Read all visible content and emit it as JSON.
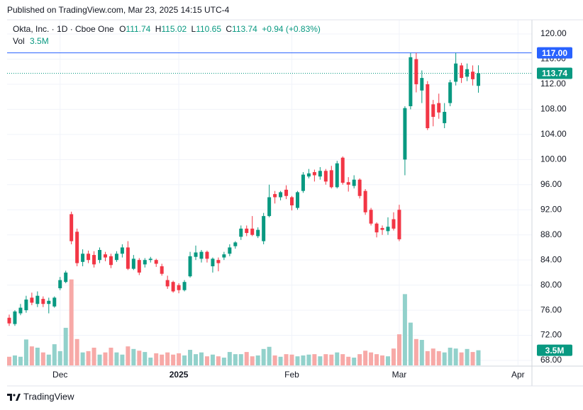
{
  "published": "Published on TradingView.com, Mar 23, 2025 14:15 UTC-4",
  "footer": "TradingView",
  "chart_data": {
    "type": "candlestick",
    "symbol": "Okta, Inc. · 1D · Cboe One",
    "ohlc_letters": [
      "O",
      "H",
      "L",
      "C"
    ],
    "change_label": "+0.94 (+0.83%)",
    "up_color": "#089981",
    "down_color": "#f23645",
    "volume_up_color": "#92d1cb",
    "volume_down_color": "#f7a9a7",
    "open": [
      74.8,
      73.8,
      75.5,
      76.0,
      78.0,
      77.0,
      77.8,
      77.0,
      76.6,
      79.5,
      80.5,
      91.3,
      88.5,
      83.7,
      85.0,
      84.8,
      84.0,
      84.9,
      84.6,
      84.0,
      85.0,
      86.0,
      82.6,
      84.0,
      83.3,
      84.0,
      84.0,
      83.0,
      80.8,
      80.5,
      80.0,
      79.2,
      81.4,
      84.5,
      84.2,
      85.3,
      83.0,
      84.0,
      84.4,
      85.0,
      86.2,
      87.7,
      89.0,
      89.0,
      87.8,
      87.0,
      91.0,
      94.5,
      94.0,
      95.2,
      94.0,
      92.3,
      95.0,
      97.3,
      98.0,
      97.3,
      98.2,
      98.3,
      95.6,
      100.3,
      96.4,
      95.8,
      96.8,
      95.0,
      92.0,
      89.8,
      89.1,
      88.6,
      90.5,
      92.0,
      100.0,
      108.5,
      116.0,
      111.0,
      112.0,
      108.8,
      109.0,
      105.8,
      109.0,
      112.4,
      115.0,
      113.2,
      114.0,
      111.74
    ],
    "high": [
      75.3,
      76.0,
      77.0,
      78.3,
      78.8,
      79.0,
      78.2,
      78.0,
      78.2,
      81.3,
      82.3,
      91.7,
      89.0,
      85.7,
      85.5,
      85.4,
      86.0,
      85.3,
      85.0,
      85.4,
      86.5,
      87.0,
      84.8,
      84.3,
      84.3,
      84.5,
      84.2,
      83.4,
      81.5,
      80.7,
      80.3,
      80.8,
      85.3,
      86.3,
      85.6,
      85.5,
      84.4,
      84.4,
      85.3,
      86.5,
      87.0,
      89.5,
      89.5,
      91.0,
      89.2,
      91.5,
      96.0,
      95.0,
      95.0,
      95.9,
      94.2,
      95.0,
      98.0,
      98.5,
      98.4,
      98.8,
      98.5,
      99.0,
      99.8,
      100.5,
      97.2,
      97.5,
      97.0,
      95.3,
      92.3,
      90.0,
      89.5,
      90.8,
      91.6,
      92.8,
      108.5,
      117.0,
      117.0,
      114.2,
      112.5,
      109.5,
      110.5,
      109.0,
      112.7,
      117.0,
      115.4,
      115.3,
      115.0,
      115.02
    ],
    "low": [
      73.5,
      73.5,
      75.2,
      75.6,
      76.8,
      76.5,
      76.5,
      75.5,
      76.4,
      79.2,
      80.3,
      86.5,
      83.0,
      83.0,
      83.5,
      82.8,
      83.5,
      83.8,
      82.7,
      83.7,
      84.4,
      82.4,
      82.4,
      81.6,
      82.8,
      83.6,
      82.9,
      81.5,
      79.4,
      78.8,
      78.7,
      79.0,
      81.2,
      84.0,
      83.6,
      83.6,
      82.0,
      82.2,
      84.0,
      84.6,
      85.8,
      87.2,
      87.8,
      87.8,
      87.5,
      86.5,
      90.8,
      93.0,
      93.5,
      93.7,
      91.9,
      92.0,
      94.7,
      97.0,
      96.5,
      96.8,
      96.0,
      95.4,
      95.4,
      96.0,
      94.9,
      95.4,
      93.8,
      91.2,
      89.5,
      87.6,
      88.0,
      88.0,
      88.7,
      87.0,
      97.5,
      108.0,
      110.7,
      109.0,
      104.7,
      105.3,
      106.5,
      105.0,
      108.5,
      111.8,
      112.2,
      112.5,
      111.8,
      110.65
    ],
    "close": [
      73.9,
      75.8,
      76.4,
      77.7,
      77.2,
      78.3,
      77.0,
      77.5,
      78.0,
      80.8,
      82.0,
      87.0,
      83.5,
      85.0,
      84.0,
      83.3,
      85.6,
      84.4,
      83.2,
      85.0,
      86.0,
      82.6,
      84.2,
      82.0,
      84.0,
      84.2,
      83.4,
      81.8,
      79.8,
      79.0,
      79.2,
      80.5,
      84.6,
      85.2,
      85.3,
      84.2,
      84.2,
      83.5,
      84.9,
      86.0,
      86.8,
      89.0,
      88.3,
      88.0,
      88.8,
      91.0,
      94.0,
      94.0,
      94.8,
      94.2,
      92.7,
      94.8,
      97.6,
      97.8,
      97.5,
      98.2,
      96.5,
      95.6,
      99.4,
      96.3,
      96.0,
      96.8,
      94.2,
      91.6,
      89.8,
      88.4,
      88.8,
      89.3,
      89.0,
      87.3,
      108.2,
      116.3,
      112.0,
      113.0,
      105.0,
      106.8,
      107.5,
      107.6,
      112.3,
      115.3,
      113.0,
      114.4,
      112.8,
      113.74
    ],
    "volume": {
      "name": "Vol",
      "values": [
        2.0,
        2.3,
        2.0,
        6.0,
        4.4,
        4.1,
        3.0,
        2.5,
        4.9,
        3.3,
        8.7,
        19.9,
        6.1,
        3.0,
        3.3,
        4.1,
        2.5,
        3.0,
        4.1,
        3.0,
        2.5,
        4.4,
        3.8,
        3.4,
        3.1,
        1.8,
        2.8,
        2.5,
        3.0,
        2.5,
        2.8,
        2.3,
        3.6,
        2.6,
        3.0,
        2.1,
        2.5,
        2.1,
        1.8,
        3.1,
        2.6,
        2.6,
        3.1,
        2.1,
        2.3,
        3.8,
        4.3,
        2.3,
        2.0,
        2.6,
        2.5,
        2.1,
        2.3,
        2.5,
        2.6,
        2.1,
        2.6,
        2.5,
        3.0,
        2.6,
        2.0,
        1.8,
        2.6,
        3.4,
        3.0,
        2.6,
        2.3,
        2.1,
        3.9,
        7.2,
        16.5,
        9.9,
        6.1,
        5.9,
        3.3,
        3.9,
        3.3,
        3.0,
        4.1,
        3.9,
        3.0,
        3.8,
        3.1,
        3.5
      ],
      "value_labels": [
        null,
        null,
        null,
        null,
        null,
        null,
        null,
        null,
        null,
        null,
        null,
        null,
        null,
        null,
        null,
        null,
        null,
        null,
        null,
        null,
        null,
        null,
        null,
        null,
        null,
        null,
        null,
        null,
        null,
        null,
        null,
        null,
        null,
        null,
        null,
        null,
        null,
        null,
        null,
        null,
        null,
        null,
        null,
        null,
        null,
        null,
        null,
        null,
        null,
        null,
        null,
        null,
        null,
        null,
        null,
        null,
        null,
        null,
        null,
        null,
        null,
        null,
        null,
        null,
        null,
        null,
        null,
        null,
        null,
        null,
        null,
        null,
        null,
        null,
        null,
        null,
        null,
        null,
        null,
        null,
        null,
        null,
        null,
        "3.5M"
      ],
      "ylim": [
        0,
        80
      ]
    },
    "hline": {
      "value": 117,
      "label": "117.00",
      "color": "#2962ff"
    },
    "xlim": [
      -0.376,
      92.47
    ],
    "xticks": [
      {
        "value": 9,
        "label": "Dec"
      },
      {
        "value": 30,
        "label": "2025"
      },
      {
        "value": 50,
        "label": "Feb"
      },
      {
        "value": 69,
        "label": "Mar"
      },
      {
        "value": 90,
        "label": "Apr"
      }
    ],
    "ylim": [
      66.76,
      122.26
    ],
    "yticks": [
      {
        "value": 68,
        "label": "68.00"
      },
      {
        "value": 72,
        "label": "72.00"
      },
      {
        "value": 76,
        "label": "76.00"
      },
      {
        "value": 80,
        "label": "80.00"
      },
      {
        "value": 84,
        "label": "84.00"
      },
      {
        "value": 88,
        "label": "88.00"
      },
      {
        "value": 92,
        "label": "92.00"
      },
      {
        "value": 96,
        "label": "96.00"
      },
      {
        "value": 100,
        "label": "100.00"
      },
      {
        "value": 104,
        "label": "104.00"
      },
      {
        "value": 108,
        "label": "108.00"
      },
      {
        "value": 112,
        "label": "112.00"
      },
      {
        "value": 116,
        "label": "116.00"
      },
      {
        "value": 120,
        "label": "120.00"
      }
    ],
    "grid": true
  }
}
